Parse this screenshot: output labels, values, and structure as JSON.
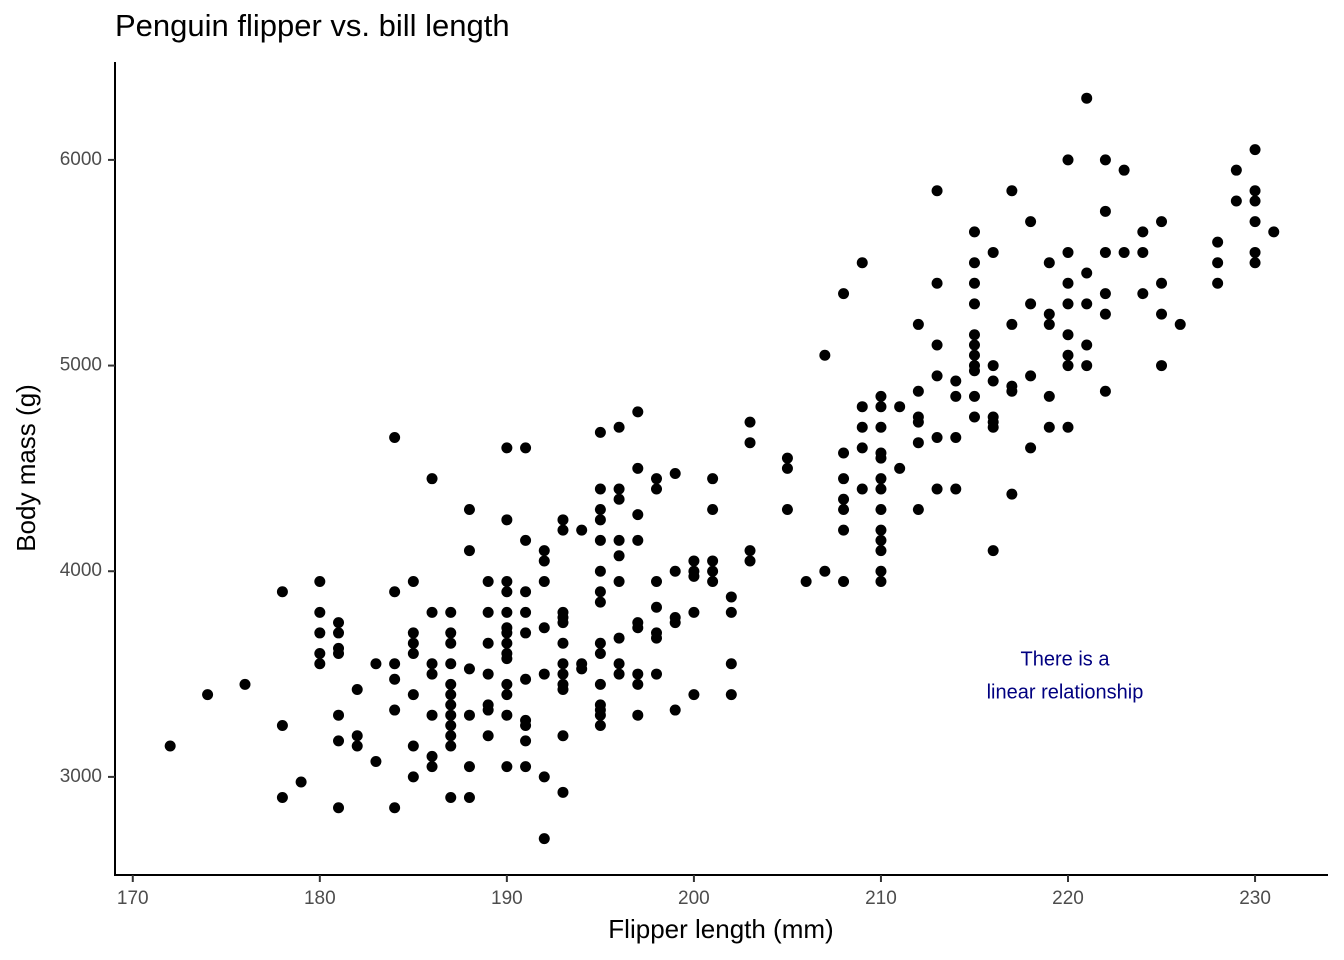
{
  "chart_data": {
    "type": "scatter",
    "title": "Penguin flipper vs. bill length",
    "x_label": "Flipper length (mm)",
    "y_label": "Body mass (g)",
    "annotation": [
      "There is a",
      "linear relationship"
    ],
    "annotation_color": "#000080",
    "color": "#000000",
    "xlim": [
      169.05,
      233.9
    ],
    "ylim": [
      2523,
      6476
    ],
    "xticks": [
      170,
      180,
      190,
      200,
      210,
      220,
      230
    ],
    "yticks": [
      3000,
      4000,
      5000,
      6000
    ],
    "grid": false,
    "x": [
      172,
      174,
      176,
      178,
      178,
      178,
      179,
      180,
      180,
      180,
      180,
      180,
      181,
      181,
      181,
      181,
      181,
      181,
      181,
      182,
      182,
      182,
      183,
      183,
      184,
      184,
      184,
      184,
      184,
      184,
      185,
      185,
      185,
      185,
      185,
      185,
      185,
      186,
      186,
      186,
      186,
      186,
      186,
      186,
      187,
      187,
      187,
      187,
      187,
      187,
      187,
      187,
      187,
      187,
      187,
      187,
      188,
      188,
      188,
      188,
      188,
      188,
      189,
      189,
      189,
      189,
      189,
      189,
      189,
      190,
      190,
      190,
      190,
      190,
      190,
      190,
      190,
      190,
      190,
      190,
      190,
      190,
      190,
      191,
      191,
      191,
      191,
      191,
      191,
      191,
      191,
      191,
      191,
      192,
      192,
      192,
      192,
      192,
      192,
      192,
      193,
      193,
      193,
      193,
      193,
      193,
      193,
      193,
      193,
      193,
      193,
      193,
      194,
      194,
      194,
      195,
      195,
      195,
      195,
      195,
      195,
      195,
      195,
      195,
      195,
      195,
      195,
      195,
      195,
      195,
      196,
      196,
      196,
      196,
      196,
      196,
      196,
      196,
      196,
      197,
      197,
      197,
      197,
      197,
      197,
      197,
      197,
      197,
      198,
      198,
      198,
      198,
      198,
      198,
      198,
      199,
      199,
      199,
      199,
      199,
      200,
      200,
      200,
      200,
      200,
      201,
      201,
      201,
      201,
      201,
      202,
      202,
      202,
      202,
      203,
      203,
      203,
      203,
      205,
      205,
      205,
      206,
      207,
      207,
      208,
      208,
      208,
      208,
      208,
      208,
      208,
      209,
      209,
      209,
      209,
      209,
      210,
      210,
      210,
      210,
      210,
      210,
      210,
      210,
      210,
      210,
      210,
      210,
      210,
      211,
      211,
      212,
      212,
      212,
      212,
      212,
      212,
      213,
      213,
      213,
      213,
      213,
      213,
      214,
      214,
      214,
      214,
      215,
      215,
      215,
      215,
      215,
      215,
      215,
      215,
      215,
      215,
      215,
      216,
      216,
      216,
      216,
      216,
      216,
      216,
      217,
      217,
      217,
      217,
      217,
      218,
      218,
      218,
      218,
      219,
      219,
      219,
      219,
      219,
      220,
      220,
      220,
      220,
      220,
      220,
      220,
      220,
      221,
      221,
      221,
      221,
      221,
      222,
      222,
      222,
      222,
      222,
      222,
      223,
      223,
      224,
      224,
      224,
      225,
      225,
      225,
      225,
      226,
      228,
      228,
      228,
      229,
      229,
      230,
      230,
      230,
      230,
      230,
      230,
      231
    ],
    "values": [
      3150,
      3400,
      3450,
      3900,
      3250,
      2900,
      2975,
      3950,
      3800,
      3700,
      3600,
      3550,
      3750,
      3700,
      3625,
      3600,
      3300,
      3175,
      2850,
      3425,
      3200,
      3150,
      3550,
      3075,
      4650,
      3900,
      3550,
      3475,
      3325,
      2850,
      3950,
      3700,
      3650,
      3600,
      3400,
      3150,
      3000,
      4450,
      3800,
      3550,
      3500,
      3300,
      3100,
      3050,
      3800,
      3700,
      3650,
      3550,
      3450,
      3400,
      3350,
      3300,
      3250,
      3200,
      3150,
      2900,
      4300,
      4100,
      3525,
      3300,
      3050,
      2900,
      3950,
      3800,
      3650,
      3500,
      3350,
      3325,
      3200,
      4600,
      4250,
      3950,
      3900,
      3800,
      3725,
      3700,
      3650,
      3600,
      3575,
      3450,
      3400,
      3300,
      3050,
      4600,
      4150,
      3900,
      3800,
      3700,
      3475,
      3275,
      3250,
      3175,
      3050,
      4100,
      4050,
      3950,
      3725,
      3500,
      3000,
      2700,
      4250,
      4200,
      3800,
      3775,
      3750,
      3650,
      3550,
      3500,
      3450,
      3425,
      3200,
      2925,
      4200,
      3550,
      3525,
      4675,
      4400,
      4300,
      4250,
      4150,
      4000,
      3900,
      3850,
      3650,
      3600,
      3450,
      3350,
      3325,
      3300,
      3250,
      4700,
      4400,
      4350,
      4150,
      4075,
      3950,
      3675,
      3550,
      3500,
      4775,
      4500,
      4275,
      4150,
      3750,
      3725,
      3500,
      3450,
      3300,
      4450,
      4400,
      3950,
      3825,
      3700,
      3675,
      3500,
      4475,
      4000,
      3775,
      3750,
      3325,
      4050,
      4000,
      3975,
      3800,
      3400,
      4450,
      4300,
      4050,
      4000,
      3950,
      3875,
      3800,
      3550,
      3400,
      4725,
      4625,
      4100,
      4050,
      4550,
      4500,
      4300,
      3950,
      5050,
      4000,
      5350,
      4575,
      4450,
      4350,
      4300,
      4200,
      3950,
      5500,
      4800,
      4700,
      4600,
      4400,
      4850,
      4800,
      4700,
      4575,
      4550,
      4450,
      4400,
      4300,
      4200,
      4150,
      4100,
      4000,
      3950,
      4800,
      4500,
      5200,
      4875,
      4750,
      4725,
      4625,
      4300,
      5850,
      5400,
      5100,
      4950,
      4650,
      4400,
      4925,
      4850,
      4650,
      4400,
      5650,
      5500,
      5400,
      5300,
      5150,
      5100,
      5050,
      5000,
      4975,
      4850,
      4750,
      5550,
      5000,
      4925,
      4750,
      4725,
      4700,
      4100,
      5850,
      5200,
      4900,
      4875,
      4375,
      5700,
      5300,
      4950,
      4600,
      5500,
      5250,
      5200,
      4850,
      4700,
      6000,
      5550,
      5400,
      5300,
      5150,
      5050,
      5000,
      4700,
      6300,
      5450,
      5300,
      5100,
      5000,
      6000,
      5750,
      5550,
      5350,
      5250,
      4875,
      5950,
      5550,
      5650,
      5550,
      5350,
      5700,
      5400,
      5250,
      5000,
      5200,
      5600,
      5500,
      5400,
      5950,
      5800,
      6050,
      5850,
      5800,
      5700,
      5550,
      5500,
      5650
    ]
  }
}
